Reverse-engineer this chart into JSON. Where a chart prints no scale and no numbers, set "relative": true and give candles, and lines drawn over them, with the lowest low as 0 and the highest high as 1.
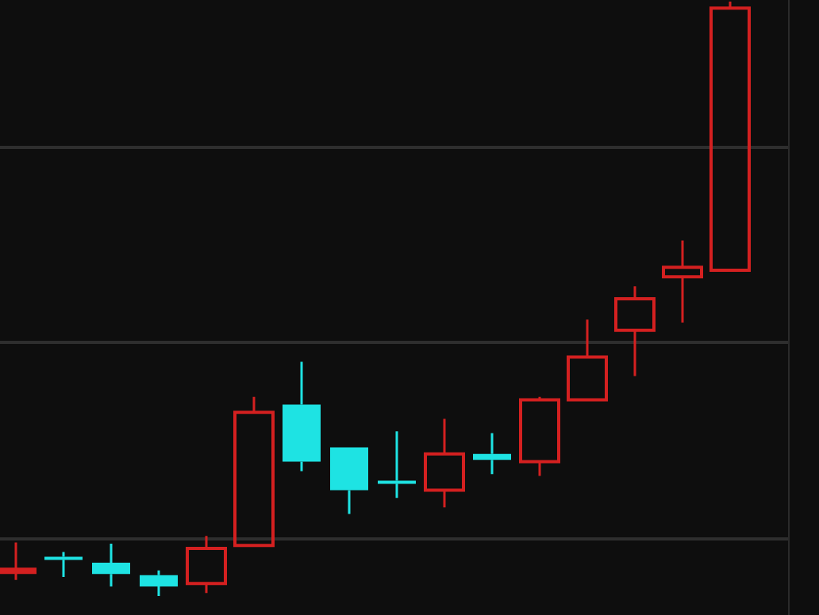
{
  "chart_data": {
    "type": "candlestick",
    "relative": true,
    "grid": "y",
    "categories": [
      null,
      null,
      null,
      null,
      null,
      null,
      null,
      null,
      null,
      null,
      null,
      null,
      null,
      null,
      null,
      null
    ],
    "ohlc": [
      [
        0.04,
        0.09,
        0.027,
        0.045
      ],
      [
        0.066,
        0.074,
        0.032,
        0.061
      ],
      [
        0.056,
        0.088,
        0.016,
        0.037
      ],
      [
        0.035,
        0.043,
        0,
        0.016
      ],
      [
        0.021,
        0.101,
        0.005,
        0.08
      ],
      [
        0.085,
        0.335,
        0.085,
        0.309
      ],
      [
        0.322,
        0.394,
        0.21,
        0.226
      ],
      [
        0.25,
        0.25,
        0.138,
        0.178
      ],
      [
        0.194,
        0.277,
        0.165,
        0.189
      ],
      [
        0.178,
        0.298,
        0.149,
        0.239
      ],
      [
        0.239,
        0.274,
        0.205,
        0.229
      ],
      [
        0.226,
        0.335,
        0.202,
        0.33
      ],
      [
        0.33,
        0.465,
        0.33,
        0.402
      ],
      [
        0.447,
        0.521,
        0.37,
        0.5
      ],
      [
        0.537,
        0.598,
        0.46,
        0.553
      ],
      [
        0.548,
        1,
        0.548,
        0.989
      ]
    ],
    "colors": [
      "#d42020",
      "#1ee3e3",
      "#1ee3e3",
      "#1ee3e3",
      "#d42020",
      "#d42020",
      "#1ee3e3",
      "#1ee3e3",
      "#1ee3e3",
      "#d42020",
      "#1ee3e3",
      "#d42020",
      "#d42020",
      "#d42020",
      "#d42020",
      "#d42020"
    ]
  }
}
